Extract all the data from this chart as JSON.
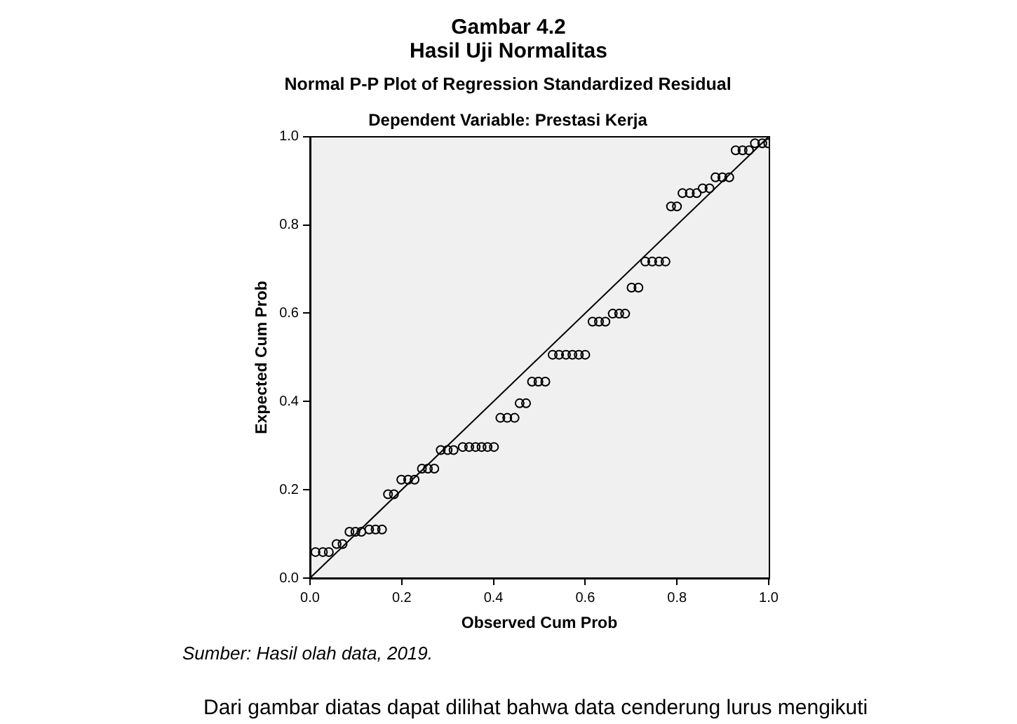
{
  "chart_data": {
    "type": "scatter",
    "title": "Normal P-P Plot of Regression Standardized Residual",
    "subtitle": "Dependent Variable: Prestasi Kerja",
    "xlabel": "Observed Cum Prob",
    "ylabel": "Expected Cum Prob",
    "xlim": [
      0,
      1
    ],
    "ylim": [
      0,
      1
    ],
    "xticks": [
      {
        "value": 0,
        "label": "0.0"
      },
      0.2,
      0.4,
      0.6,
      0.8,
      {
        "value": 1,
        "label": "1.0"
      }
    ],
    "yticks": [
      {
        "value": 0,
        "label": "0.0"
      },
      0.2,
      0.4,
      0.6,
      0.8,
      {
        "value": 1,
        "label": "1.0"
      }
    ],
    "grid": false,
    "legend": false,
    "series": [
      {
        "type": "scatter",
        "color": "#000000",
        "marker": "circle",
        "x": [
          0.012,
          0.028,
          0.041,
          0.058,
          0.071,
          0.086,
          0.099,
          0.112,
          0.129,
          0.143,
          0.157,
          0.17,
          0.183,
          0.199,
          0.214,
          0.228,
          0.244,
          0.257,
          0.271,
          0.285,
          0.3,
          0.313,
          0.333,
          0.347,
          0.361,
          0.374,
          0.387,
          0.401,
          0.415,
          0.43,
          0.446,
          0.457,
          0.471,
          0.484,
          0.498,
          0.513,
          0.529,
          0.543,
          0.558,
          0.572,
          0.586,
          0.6,
          0.616,
          0.63,
          0.644,
          0.66,
          0.674,
          0.687,
          0.701,
          0.716,
          0.731,
          0.746,
          0.761,
          0.775,
          0.787,
          0.8,
          0.812,
          0.828,
          0.843,
          0.856,
          0.871,
          0.884,
          0.899,
          0.914,
          0.928,
          0.943,
          0.957,
          0.97,
          0.986,
          0.999
        ],
        "values": [
          0.059,
          0.059,
          0.059,
          0.077,
          0.077,
          0.105,
          0.105,
          0.105,
          0.11,
          0.11,
          0.11,
          0.19,
          0.19,
          0.223,
          0.223,
          0.223,
          0.248,
          0.248,
          0.248,
          0.29,
          0.29,
          0.29,
          0.297,
          0.297,
          0.297,
          0.297,
          0.297,
          0.297,
          0.363,
          0.363,
          0.363,
          0.396,
          0.396,
          0.445,
          0.445,
          0.445,
          0.506,
          0.506,
          0.506,
          0.506,
          0.506,
          0.506,
          0.581,
          0.581,
          0.581,
          0.599,
          0.599,
          0.599,
          0.658,
          0.658,
          0.717,
          0.717,
          0.717,
          0.717,
          0.842,
          0.842,
          0.872,
          0.872,
          0.872,
          0.883,
          0.883,
          0.908,
          0.908,
          0.908,
          0.969,
          0.969,
          0.969,
          0.985,
          0.985,
          0.985
        ]
      },
      {
        "type": "line",
        "color": "#000000",
        "marker": "none",
        "line_style": "solid",
        "x": [
          0,
          1
        ],
        "values": [
          0,
          1
        ]
      }
    ],
    "annotations": [
      "Gambar 4.2",
      "Hasil Uji Normalitas",
      "Sumber: Hasil olah data, 2019.",
      "Dari gambar diatas dapat dilihat bahwa data cenderung lurus mengikuti"
    ]
  }
}
